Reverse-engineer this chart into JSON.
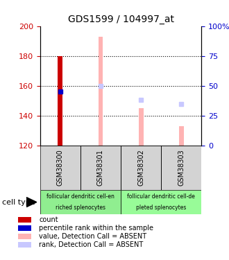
{
  "title": "GDS1599 / 104997_at",
  "samples": [
    "GSM38300",
    "GSM38301",
    "GSM38302",
    "GSM38303"
  ],
  "ylim_left": [
    120,
    200
  ],
  "ylim_right": [
    0,
    100
  ],
  "yticks_left": [
    120,
    140,
    160,
    180,
    200
  ],
  "yticks_right": [
    0,
    25,
    50,
    75,
    100
  ],
  "count_values": [
    180,
    null,
    null,
    null
  ],
  "count_color": "#cc0000",
  "percentile_values": [
    156,
    null,
    null,
    null
  ],
  "percentile_color": "#0000cc",
  "absent_value_values": [
    null,
    193,
    145,
    133
  ],
  "absent_value_color": "#ffb3b3",
  "absent_rank_values": [
    null,
    50,
    38,
    35
  ],
  "absent_rank_color": "#c8c8ff",
  "cell_type_groups": [
    {
      "label": "follicular dendritic cell-en\nriched splenocytes",
      "samples": [
        0,
        1
      ],
      "color": "#90ee90"
    },
    {
      "label": "follicular dendritic cell-de\npleted splenocytes",
      "samples": [
        2,
        3
      ],
      "color": "#98fb98"
    }
  ],
  "grid_color": "#000000",
  "tick_label_color_left": "#cc0000",
  "tick_label_color_right": "#0000cc",
  "legend_items": [
    {
      "label": "count",
      "color": "#cc0000"
    },
    {
      "label": "percentile rank within the sample",
      "color": "#0000cc"
    },
    {
      "label": "value, Detection Call = ABSENT",
      "color": "#ffb3b3"
    },
    {
      "label": "rank, Detection Call = ABSENT",
      "color": "#c8c8ff"
    }
  ]
}
